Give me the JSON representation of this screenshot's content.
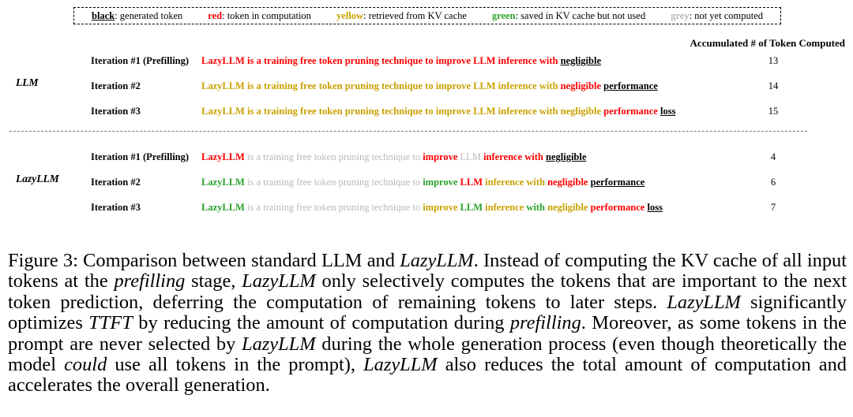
{
  "legend": [
    {
      "key": "black",
      "desc": ": generated token",
      "color": "#000000",
      "underline": true
    },
    {
      "key": "red",
      "desc": ": token in computation",
      "color": "#ff0000",
      "underline": false
    },
    {
      "key": "yellow",
      "desc": ": retrieved from KV cache",
      "color": "#c9a100",
      "underline": false
    },
    {
      "key": "green",
      "desc": ": saved in KV cache but not used",
      "color": "#29a329",
      "underline": false
    },
    {
      "key": "grey",
      "desc": ": not yet computed",
      "color": "#b8b8b8",
      "underline": false
    }
  ],
  "accumulated_header": "Accumulated # of Token Computed",
  "groups": [
    {
      "label": "LLM",
      "rows": [
        {
          "iteration": "Iteration #1 (Prefilling)",
          "count": "13",
          "tokens": [
            [
              "LazyLLM",
              "red"
            ],
            [
              "is",
              "red"
            ],
            [
              "a",
              "red"
            ],
            [
              "training",
              "red"
            ],
            [
              "free",
              "red"
            ],
            [
              "token",
              "red"
            ],
            [
              "pruning",
              "red"
            ],
            [
              "technique",
              "red"
            ],
            [
              "to",
              "red"
            ],
            [
              "improve",
              "red"
            ],
            [
              "LLM",
              "red"
            ],
            [
              "inference",
              "red"
            ],
            [
              "with",
              "red"
            ],
            [
              "negligible",
              "black"
            ]
          ]
        },
        {
          "iteration": "Iteration #2",
          "count": "14",
          "tokens": [
            [
              "LazyLLM",
              "yellow"
            ],
            [
              "is",
              "yellow"
            ],
            [
              "a",
              "yellow"
            ],
            [
              "training",
              "yellow"
            ],
            [
              "free",
              "yellow"
            ],
            [
              "token",
              "yellow"
            ],
            [
              "pruning",
              "yellow"
            ],
            [
              "technique",
              "yellow"
            ],
            [
              "to",
              "yellow"
            ],
            [
              "improve",
              "yellow"
            ],
            [
              "LLM",
              "yellow"
            ],
            [
              "inference",
              "yellow"
            ],
            [
              "with",
              "yellow"
            ],
            [
              "negligible",
              "red"
            ],
            [
              "performance",
              "black"
            ]
          ]
        },
        {
          "iteration": "Iteration #3",
          "count": "15",
          "tokens": [
            [
              "LazyLLM",
              "yellow"
            ],
            [
              "is",
              "yellow"
            ],
            [
              "a",
              "yellow"
            ],
            [
              "training",
              "yellow"
            ],
            [
              "free",
              "yellow"
            ],
            [
              "token",
              "yellow"
            ],
            [
              "pruning",
              "yellow"
            ],
            [
              "technique",
              "yellow"
            ],
            [
              "to",
              "yellow"
            ],
            [
              "improve",
              "yellow"
            ],
            [
              "LLM",
              "yellow"
            ],
            [
              "inference",
              "yellow"
            ],
            [
              "with",
              "yellow"
            ],
            [
              "negligible",
              "yellow"
            ],
            [
              "performance",
              "red"
            ],
            [
              "loss",
              "black"
            ]
          ]
        }
      ]
    },
    {
      "label": "LazyLLM",
      "rows": [
        {
          "iteration": "Iteration #1 (Prefilling)",
          "count": "4",
          "tokens": [
            [
              "LazyLLM",
              "red"
            ],
            [
              "is",
              "grey"
            ],
            [
              "a",
              "grey"
            ],
            [
              "training",
              "grey"
            ],
            [
              "free",
              "grey"
            ],
            [
              "token",
              "grey"
            ],
            [
              "pruning",
              "grey"
            ],
            [
              "technique",
              "grey"
            ],
            [
              "to",
              "grey"
            ],
            [
              "improve",
              "red"
            ],
            [
              "LLM",
              "grey"
            ],
            [
              "inference",
              "red"
            ],
            [
              "with",
              "red"
            ],
            [
              "negligible",
              "black"
            ]
          ]
        },
        {
          "iteration": "Iteration #2",
          "count": "6",
          "tokens": [
            [
              "LazyLLM",
              "green"
            ],
            [
              "is",
              "grey"
            ],
            [
              "a",
              "grey"
            ],
            [
              "training",
              "grey"
            ],
            [
              "free",
              "grey"
            ],
            [
              "token",
              "grey"
            ],
            [
              "pruning",
              "grey"
            ],
            [
              "technique",
              "grey"
            ],
            [
              "to",
              "grey"
            ],
            [
              "improve",
              "green"
            ],
            [
              "LLM",
              "red"
            ],
            [
              "inference",
              "yellow"
            ],
            [
              "with",
              "yellow"
            ],
            [
              "negligible",
              "red"
            ],
            [
              "performance",
              "black"
            ]
          ]
        },
        {
          "iteration": "Iteration #3",
          "count": "7",
          "tokens": [
            [
              "LazyLLM",
              "green"
            ],
            [
              "is",
              "grey"
            ],
            [
              "a",
              "grey"
            ],
            [
              "training",
              "grey"
            ],
            [
              "free",
              "grey"
            ],
            [
              "token",
              "grey"
            ],
            [
              "pruning",
              "grey"
            ],
            [
              "technique",
              "grey"
            ],
            [
              "to",
              "grey"
            ],
            [
              "improve",
              "yellow"
            ],
            [
              "LLM",
              "green"
            ],
            [
              "inference",
              "yellow"
            ],
            [
              "with",
              "green"
            ],
            [
              "negligible",
              "yellow"
            ],
            [
              "performance",
              "red"
            ],
            [
              "loss",
              "black"
            ]
          ]
        }
      ]
    }
  ],
  "caption_segments": [
    [
      "Figure 3: Comparison between standard LLM and ",
      false
    ],
    [
      "LazyLLM",
      true
    ],
    [
      ". Instead of computing the KV cache of all input tokens at the ",
      false
    ],
    [
      "prefilling",
      true
    ],
    [
      " stage, ",
      false
    ],
    [
      "LazyLLM",
      true
    ],
    [
      " only selectively computes the tokens that are important to the next token prediction, deferring the computation of remaining tokens to later steps. ",
      false
    ],
    [
      "LazyLLM",
      true
    ],
    [
      " significantly optimizes ",
      false
    ],
    [
      "TTFT",
      true
    ],
    [
      " by reducing the amount of computation during ",
      false
    ],
    [
      "prefilling",
      true
    ],
    [
      ". Moreover, as some tokens in the prompt are never selected by ",
      false
    ],
    [
      "LazyLLM",
      true
    ],
    [
      " during the whole generation process (even though theoretically the model ",
      false
    ],
    [
      "could",
      true
    ],
    [
      " use all tokens in the prompt), ",
      false
    ],
    [
      "LazyLLM",
      true
    ],
    [
      " also reduces the total amount of computation and accelerates the overall generation.",
      false
    ]
  ]
}
